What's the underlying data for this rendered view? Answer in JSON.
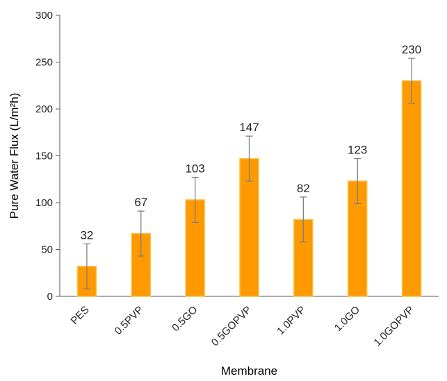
{
  "chart_data": {
    "type": "bar",
    "title": "",
    "xlabel": "Membrane",
    "ylabel": "Pure Water Flux (L/m²h)",
    "ylim": [
      0,
      300
    ],
    "yticks": [
      0,
      50,
      100,
      150,
      200,
      250,
      300
    ],
    "categories": [
      "PES",
      "0.5PVP",
      "0.5GO",
      "0.5GOPVP",
      "1.0PVP",
      "1.0GO",
      "1.0GOPVP"
    ],
    "values": [
      32,
      67,
      103,
      147,
      82,
      123,
      230
    ],
    "errors": [
      24,
      24,
      24,
      24,
      24,
      24,
      24
    ],
    "data_labels": [
      "32",
      "67",
      "103",
      "147",
      "82",
      "123",
      "230"
    ],
    "bar_color": "#FF9900",
    "bar_edge_color": "#F5C243",
    "error_color": "#7F7F7F",
    "grid": false,
    "legend": "none"
  }
}
